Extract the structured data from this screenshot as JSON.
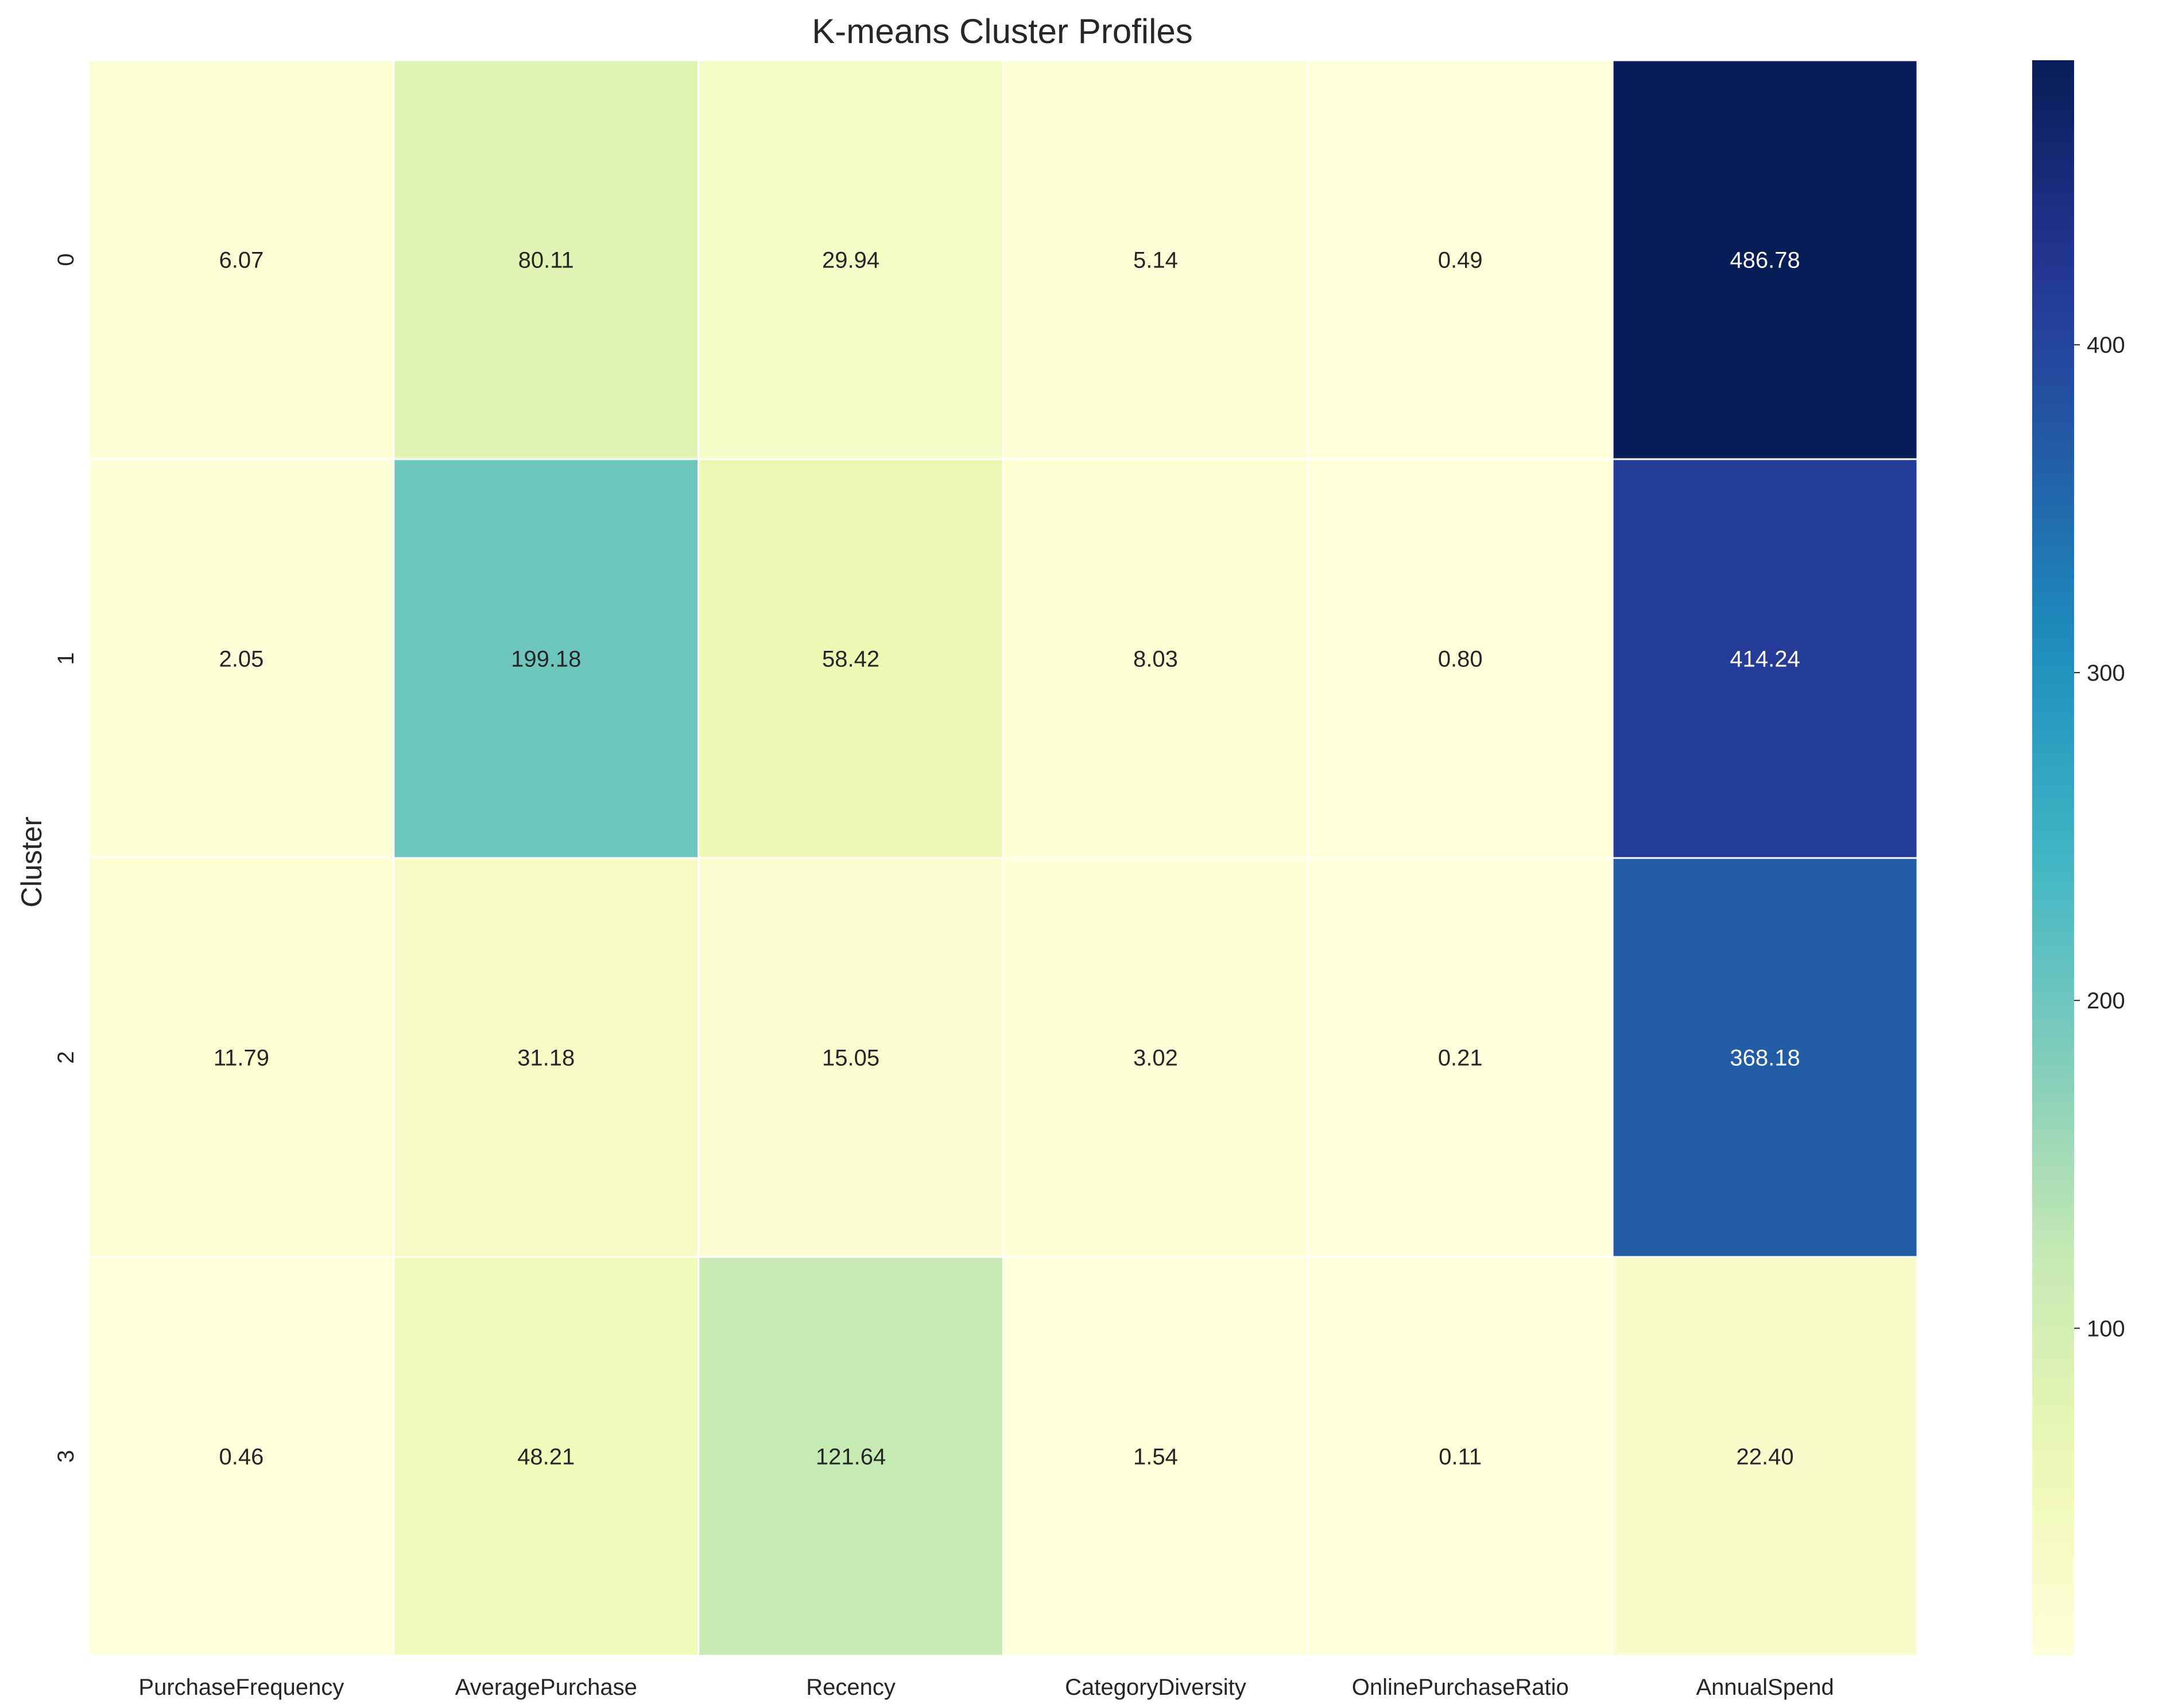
{
  "chart_data": {
    "type": "heatmap",
    "title": "K-means Cluster Profiles",
    "xlabel": "",
    "ylabel": "Cluster",
    "x_categories": [
      "PurchaseFrequency",
      "AveragePurchase",
      "Recency",
      "CategoryDiversity",
      "OnlinePurchaseRatio",
      "AnnualSpend"
    ],
    "y_categories": [
      "0",
      "1",
      "2",
      "3"
    ],
    "values": [
      [
        6.07,
        80.11,
        29.94,
        5.14,
        0.49,
        486.78
      ],
      [
        2.05,
        199.18,
        58.42,
        8.03,
        0.8,
        414.24
      ],
      [
        11.79,
        31.18,
        15.05,
        3.02,
        0.21,
        368.18
      ],
      [
        0.46,
        48.21,
        121.64,
        1.54,
        0.11,
        22.4
      ]
    ],
    "cell_labels": [
      [
        "6.07",
        "80.11",
        "29.94",
        "5.14",
        "0.49",
        "486.78"
      ],
      [
        "2.05",
        "199.18",
        "58.42",
        "8.03",
        "0.80",
        "414.24"
      ],
      [
        "11.79",
        "31.18",
        "15.05",
        "3.02",
        "0.21",
        "368.18"
      ],
      [
        "0.46",
        "48.21",
        "121.64",
        "1.54",
        "0.11",
        "22.40"
      ]
    ],
    "colormap": "YlGnBu",
    "colorbar": {
      "range": [
        0.11,
        486.78
      ],
      "ticks": [
        100,
        200,
        300,
        400
      ],
      "tick_labels": [
        "100",
        "200",
        "300",
        "400"
      ]
    },
    "grid": false,
    "colors": {
      "cell_border": "#ffffff",
      "text_dark": "#262626",
      "text_light": "#ffffff",
      "axis_text": "#262626"
    }
  }
}
